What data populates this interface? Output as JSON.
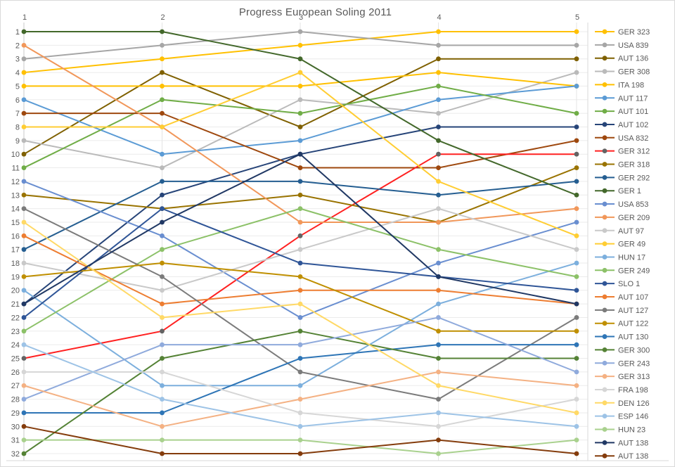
{
  "title": "Progress European Soling 2011",
  "chart_data": {
    "type": "line",
    "title": "Progress European Soling 2011",
    "xlabel": "",
    "ylabel": "",
    "x_axis_position": "top",
    "x_ticks": [
      "1",
      "2",
      "3",
      "4",
      "5"
    ],
    "y_ticks": [
      "1",
      "2",
      "3",
      "4",
      "5",
      "6",
      "7",
      "8",
      "9",
      "10",
      "11",
      "12",
      "13",
      "14",
      "15",
      "16",
      "17",
      "18",
      "19",
      "20",
      "21",
      "22",
      "23",
      "24",
      "25",
      "26",
      "27",
      "28",
      "29",
      "30",
      "31",
      "32"
    ],
    "ylim": [
      1,
      32
    ],
    "y_inverted": true,
    "grid": true,
    "legend_position": "right",
    "x": [
      1,
      2,
      3,
      4,
      5
    ],
    "series": [
      {
        "name": "GER 323",
        "color": "#FFC000",
        "values": [
          4,
          3,
          2,
          1,
          1
        ]
      },
      {
        "name": "USA 839",
        "color": "#A6A6A6",
        "values": [
          3,
          2,
          1,
          2,
          2
        ]
      },
      {
        "name": "AUT 136",
        "color": "#7F6000",
        "values": [
          10,
          4,
          8,
          3,
          3
        ]
      },
      {
        "name": "GER 308",
        "color": "#BABABA",
        "values": [
          9,
          11,
          6,
          7,
          4
        ]
      },
      {
        "name": "ITA 198",
        "color": "#FFC000",
        "values": [
          5,
          5,
          5,
          4,
          5
        ]
      },
      {
        "name": "AUT 117",
        "color": "#5B9BD5",
        "values": [
          6,
          10,
          9,
          6,
          5
        ]
      },
      {
        "name": "AUT 101",
        "color": "#70AD47",
        "values": [
          11,
          6,
          7,
          5,
          7
        ]
      },
      {
        "name": "AUT 102",
        "color": "#264478",
        "values": [
          21,
          13,
          10,
          8,
          8
        ]
      },
      {
        "name": "USA 832",
        "color": "#9E480E",
        "values": [
          7,
          7,
          11,
          11,
          9
        ]
      },
      {
        "name": "GER 312",
        "color": "#FF2020",
        "marker_color": "#636363",
        "values": [
          25,
          23,
          16,
          10,
          10
        ]
      },
      {
        "name": "GER 318",
        "color": "#997300",
        "values": [
          13,
          14,
          13,
          15,
          11
        ]
      },
      {
        "name": "GER 292",
        "color": "#255E91",
        "values": [
          17,
          12,
          12,
          13,
          12
        ]
      },
      {
        "name": "GER 1",
        "color": "#43682B",
        "values": [
          1,
          1,
          3,
          9,
          13
        ]
      },
      {
        "name": "USA 853",
        "color": "#698ED0",
        "values": [
          12,
          16,
          22,
          18,
          15
        ]
      },
      {
        "name": "GER 209",
        "color": "#F1975A",
        "values": [
          2,
          8,
          15,
          15,
          14
        ]
      },
      {
        "name": "AUT 97",
        "color": "#C9C9C9",
        "values": [
          18,
          20,
          17,
          14,
          17
        ]
      },
      {
        "name": "GER 49",
        "color": "#FFCD33",
        "values": [
          8,
          8,
          4,
          12,
          16
        ]
      },
      {
        "name": "HUN 17",
        "color": "#7CAFDD",
        "values": [
          20,
          27,
          27,
          21,
          18
        ]
      },
      {
        "name": "GER 249",
        "color": "#8CC168",
        "values": [
          23,
          17,
          14,
          17,
          19
        ]
      },
      {
        "name": "SLO 1",
        "color": "#2F5597",
        "values": [
          22,
          14,
          18,
          19,
          20
        ]
      },
      {
        "name": "AUT 107",
        "color": "#ED7D31",
        "values": [
          16,
          21,
          20,
          20,
          21
        ]
      },
      {
        "name": "AUT 127",
        "color": "#7B7B7B",
        "values": [
          14,
          19,
          26,
          28,
          22
        ]
      },
      {
        "name": "AUT 122",
        "color": "#BF8F00",
        "values": [
          19,
          18,
          19,
          23,
          23
        ]
      },
      {
        "name": "AUT 130",
        "color": "#2E75B6",
        "values": [
          29,
          29,
          25,
          24,
          24
        ]
      },
      {
        "name": "GER 300",
        "color": "#548235",
        "values": [
          32,
          25,
          23,
          25,
          25
        ]
      },
      {
        "name": "GER 243",
        "color": "#8FAADC",
        "values": [
          28,
          24,
          24,
          22,
          26
        ]
      },
      {
        "name": "GER 313",
        "color": "#F4B183",
        "values": [
          27,
          30,
          28,
          26,
          27
        ]
      },
      {
        "name": "FRA 198",
        "color": "#D6D6D6",
        "values": [
          26,
          26,
          29,
          30,
          28
        ]
      },
      {
        "name": "DEN 126",
        "color": "#FFD966",
        "values": [
          15,
          22,
          21,
          27,
          29
        ]
      },
      {
        "name": "ESP 146",
        "color": "#9DC3E6",
        "values": [
          24,
          28,
          30,
          29,
          30
        ]
      },
      {
        "name": "HUN 23",
        "color": "#A9D18E",
        "values": [
          31,
          31,
          31,
          32,
          31
        ]
      },
      {
        "name": "AUT 138",
        "color": "#203864",
        "values": [
          21,
          15,
          10,
          19,
          21
        ]
      },
      {
        "name": "AUT 138",
        "color": "#843C0C",
        "values": [
          30,
          32,
          32,
          31,
          32
        ]
      }
    ]
  },
  "colors": {
    "text": "#595959",
    "gridline": "#ebebeb",
    "axis_line": "#c9c9c9",
    "frame": "#d9d9d9"
  }
}
